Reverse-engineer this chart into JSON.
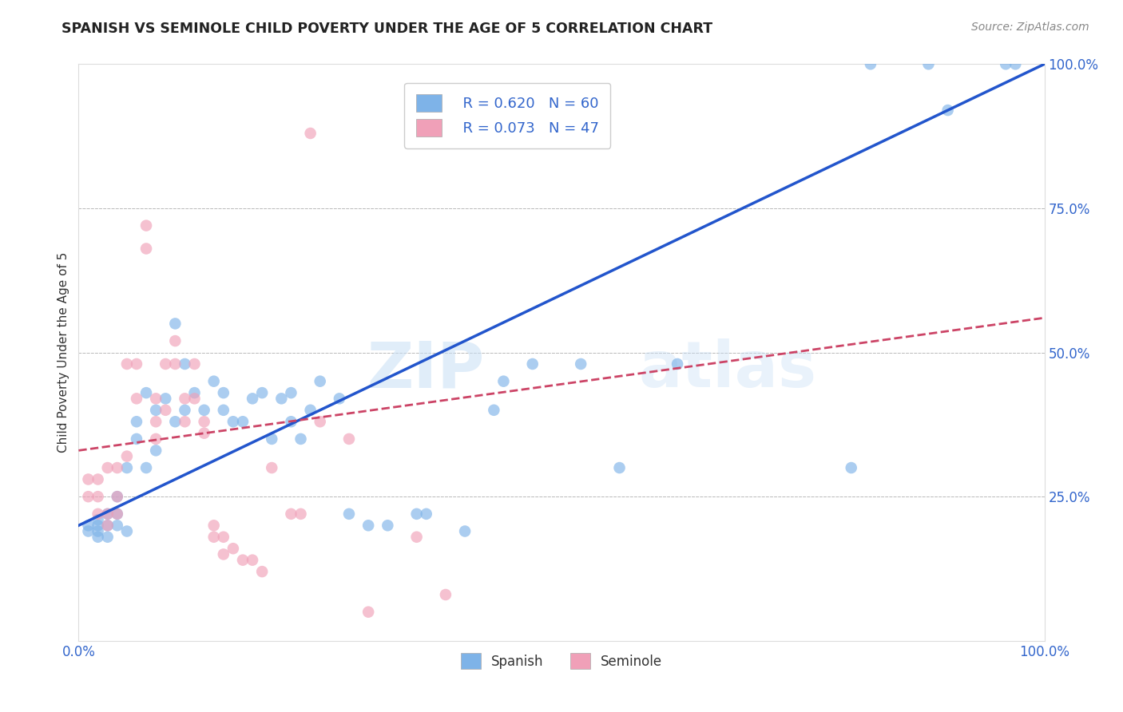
{
  "title": "SPANISH VS SEMINOLE CHILD POVERTY UNDER THE AGE OF 5 CORRELATION CHART",
  "source": "Source: ZipAtlas.com",
  "ylabel": "Child Poverty Under the Age of 5",
  "xlim": [
    0,
    1
  ],
  "ylim": [
    0,
    1
  ],
  "spanish_color": "#7EB3E8",
  "seminole_color": "#F0A0B8",
  "watermark_zip": "ZIP",
  "watermark_atlas": "atlas",
  "legend_R_label_spanish": "R = 0.620",
  "legend_N_label_spanish": "N = 60",
  "legend_R_label_seminole": "R = 0.073",
  "legend_N_label_seminole": "N = 47",
  "spanish_line_x": [
    0.0,
    1.0
  ],
  "spanish_line_y": [
    0.2,
    1.0
  ],
  "seminole_line_x": [
    0.0,
    1.0
  ],
  "seminole_line_y": [
    0.33,
    0.56
  ],
  "spanish_x": [
    0.01,
    0.01,
    0.02,
    0.02,
    0.02,
    0.02,
    0.03,
    0.03,
    0.03,
    0.04,
    0.04,
    0.04,
    0.05,
    0.05,
    0.06,
    0.06,
    0.07,
    0.07,
    0.08,
    0.08,
    0.09,
    0.1,
    0.1,
    0.11,
    0.11,
    0.12,
    0.13,
    0.14,
    0.15,
    0.15,
    0.16,
    0.17,
    0.18,
    0.19,
    0.2,
    0.21,
    0.22,
    0.22,
    0.23,
    0.24,
    0.25,
    0.27,
    0.28,
    0.3,
    0.32,
    0.35,
    0.36,
    0.4,
    0.43,
    0.44,
    0.47,
    0.52,
    0.56,
    0.62,
    0.8,
    0.82,
    0.88,
    0.9,
    0.96,
    0.97
  ],
  "spanish_y": [
    0.19,
    0.2,
    0.18,
    0.19,
    0.2,
    0.21,
    0.18,
    0.2,
    0.22,
    0.2,
    0.22,
    0.25,
    0.19,
    0.3,
    0.35,
    0.38,
    0.3,
    0.43,
    0.33,
    0.4,
    0.42,
    0.38,
    0.55,
    0.4,
    0.48,
    0.43,
    0.4,
    0.45,
    0.4,
    0.43,
    0.38,
    0.38,
    0.42,
    0.43,
    0.35,
    0.42,
    0.43,
    0.38,
    0.35,
    0.4,
    0.45,
    0.42,
    0.22,
    0.2,
    0.2,
    0.22,
    0.22,
    0.19,
    0.4,
    0.45,
    0.48,
    0.48,
    0.3,
    0.48,
    0.3,
    1.0,
    1.0,
    0.92,
    1.0,
    1.0
  ],
  "seminole_x": [
    0.01,
    0.01,
    0.02,
    0.02,
    0.02,
    0.03,
    0.03,
    0.03,
    0.04,
    0.04,
    0.04,
    0.05,
    0.05,
    0.06,
    0.06,
    0.07,
    0.07,
    0.08,
    0.08,
    0.08,
    0.09,
    0.09,
    0.1,
    0.1,
    0.11,
    0.11,
    0.12,
    0.12,
    0.13,
    0.13,
    0.14,
    0.14,
    0.15,
    0.15,
    0.16,
    0.17,
    0.18,
    0.19,
    0.2,
    0.22,
    0.23,
    0.24,
    0.25,
    0.28,
    0.3,
    0.35,
    0.38
  ],
  "seminole_y": [
    0.25,
    0.28,
    0.22,
    0.25,
    0.28,
    0.2,
    0.22,
    0.3,
    0.22,
    0.25,
    0.3,
    0.32,
    0.48,
    0.48,
    0.42,
    0.68,
    0.72,
    0.35,
    0.38,
    0.42,
    0.4,
    0.48,
    0.52,
    0.48,
    0.38,
    0.42,
    0.42,
    0.48,
    0.36,
    0.38,
    0.18,
    0.2,
    0.18,
    0.15,
    0.16,
    0.14,
    0.14,
    0.12,
    0.3,
    0.22,
    0.22,
    0.88,
    0.38,
    0.35,
    0.05,
    0.18,
    0.08
  ]
}
